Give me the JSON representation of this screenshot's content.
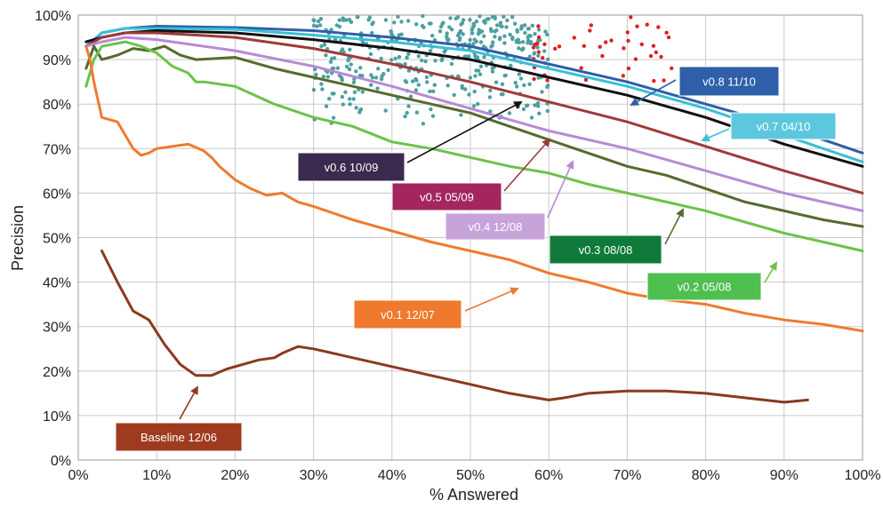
{
  "chart_data": {
    "type": "line",
    "xlabel": "% Answered",
    "ylabel": "Precision",
    "xlim": [
      0,
      100
    ],
    "ylim": [
      0,
      100
    ],
    "x_ticks": [
      "0%",
      "10%",
      "20%",
      "30%",
      "40%",
      "50%",
      "60%",
      "70%",
      "80%",
      "90%",
      "100%"
    ],
    "y_ticks": [
      "0%",
      "10%",
      "20%",
      "30%",
      "40%",
      "50%",
      "60%",
      "70%",
      "80%",
      "90%",
      "100%"
    ],
    "grid": true,
    "series": [
      {
        "name": "v0.8 11/10",
        "color": "#2e5fa8",
        "label_text_color": "#ffffff",
        "points": [
          [
            1,
            93
          ],
          [
            3,
            96
          ],
          [
            6,
            97
          ],
          [
            10,
            97.5
          ],
          [
            20,
            97.2
          ],
          [
            30,
            96.5
          ],
          [
            40,
            95
          ],
          [
            50,
            93
          ],
          [
            60,
            89
          ],
          [
            70,
            85
          ],
          [
            80,
            80
          ],
          [
            90,
            75
          ],
          [
            100,
            69
          ]
        ]
      },
      {
        "name": "v0.7 04/10",
        "color": "#3bbfd6",
        "label_text_color": "#ffffff",
        "points": [
          [
            1,
            93
          ],
          [
            3,
            96
          ],
          [
            6,
            97
          ],
          [
            10,
            97
          ],
          [
            20,
            96.8
          ],
          [
            30,
            95.5
          ],
          [
            40,
            94
          ],
          [
            50,
            92
          ],
          [
            60,
            88
          ],
          [
            70,
            84
          ],
          [
            80,
            79
          ],
          [
            90,
            73
          ],
          [
            100,
            67
          ]
        ]
      },
      {
        "name": "v0.6 10/09",
        "color": "#111111",
        "label_bg": "#3b2a4f",
        "label_text_color": "#ffffff",
        "points": [
          [
            1,
            94
          ],
          [
            3,
            95
          ],
          [
            6,
            96
          ],
          [
            10,
            96.5
          ],
          [
            20,
            96
          ],
          [
            30,
            94.5
          ],
          [
            40,
            92.5
          ],
          [
            50,
            90
          ],
          [
            60,
            86
          ],
          [
            70,
            82
          ],
          [
            80,
            77
          ],
          [
            90,
            71
          ],
          [
            100,
            66
          ]
        ]
      },
      {
        "name": "v0.5 05/09",
        "color": "#9e3a3a",
        "label_bg": "#a3265e",
        "label_text_color": "#ffffff",
        "points": [
          [
            1,
            93
          ],
          [
            3,
            95
          ],
          [
            6,
            96
          ],
          [
            10,
            96
          ],
          [
            20,
            95
          ],
          [
            30,
            92.5
          ],
          [
            40,
            89
          ],
          [
            50,
            85
          ],
          [
            60,
            80.5
          ],
          [
            70,
            76
          ],
          [
            80,
            70.5
          ],
          [
            90,
            65
          ],
          [
            100,
            60
          ]
        ]
      },
      {
        "name": "v0.4 12/08",
        "color": "#b88ad6",
        "label_bg": "#c7a3dc",
        "label_text_color": "#ffffff",
        "points": [
          [
            1,
            93
          ],
          [
            3,
            94
          ],
          [
            6,
            95
          ],
          [
            10,
            94.5
          ],
          [
            20,
            92
          ],
          [
            30,
            88.5
          ],
          [
            40,
            84
          ],
          [
            50,
            79
          ],
          [
            60,
            74
          ],
          [
            70,
            70
          ],
          [
            80,
            65
          ],
          [
            90,
            60
          ],
          [
            100,
            56
          ]
        ]
      },
      {
        "name": "v0.3 08/08",
        "color": "#556b2f",
        "label_bg": "#0f7a3a",
        "label_text_color": "#ffffff",
        "points": [
          [
            1,
            88
          ],
          [
            2,
            93
          ],
          [
            3,
            90
          ],
          [
            5,
            91
          ],
          [
            7,
            92.5
          ],
          [
            9,
            92
          ],
          [
            11,
            93
          ],
          [
            13,
            91
          ],
          [
            15,
            90
          ],
          [
            20,
            90.5
          ],
          [
            25,
            88
          ],
          [
            30,
            86
          ],
          [
            35,
            84
          ],
          [
            40,
            82
          ],
          [
            45,
            80
          ],
          [
            50,
            78
          ],
          [
            55,
            75
          ],
          [
            60,
            72
          ],
          [
            65,
            69
          ],
          [
            70,
            66
          ],
          [
            75,
            64
          ],
          [
            80,
            61
          ],
          [
            85,
            58
          ],
          [
            90,
            56
          ],
          [
            95,
            54
          ],
          [
            100,
            52.5
          ]
        ]
      },
      {
        "name": "v0.2 05/08",
        "color": "#6cc24a",
        "label_bg": "#4fbf4f",
        "label_text_color": "#ffffff",
        "points": [
          [
            1,
            84
          ],
          [
            2,
            90
          ],
          [
            3,
            93
          ],
          [
            6,
            94
          ],
          [
            8,
            93
          ],
          [
            10,
            91.5
          ],
          [
            12,
            88.5
          ],
          [
            14,
            87
          ],
          [
            15,
            85
          ],
          [
            16,
            85
          ],
          [
            18,
            84.5
          ],
          [
            20,
            84
          ],
          [
            25,
            80
          ],
          [
            30,
            77
          ],
          [
            35,
            75
          ],
          [
            40,
            71.5
          ],
          [
            45,
            70
          ],
          [
            50,
            68
          ],
          [
            55,
            66
          ],
          [
            60,
            64.5
          ],
          [
            65,
            62
          ],
          [
            70,
            60
          ],
          [
            75,
            58
          ],
          [
            80,
            56
          ],
          [
            85,
            53.5
          ],
          [
            90,
            51
          ],
          [
            95,
            49
          ],
          [
            100,
            47
          ]
        ]
      },
      {
        "name": "v0.1 12/07",
        "color": "#ef7a2e",
        "label_bg": "#ef7a2e",
        "label_text_color": "#ffffff",
        "points": [
          [
            1,
            93
          ],
          [
            1.5,
            90
          ],
          [
            2,
            85
          ],
          [
            3,
            77
          ],
          [
            5,
            76
          ],
          [
            6,
            73
          ],
          [
            7,
            70
          ],
          [
            8,
            68.5
          ],
          [
            9,
            69
          ],
          [
            10,
            70
          ],
          [
            12,
            70.5
          ],
          [
            14,
            71
          ],
          [
            16,
            69.5
          ],
          [
            17,
            68
          ],
          [
            18,
            66
          ],
          [
            20,
            63
          ],
          [
            22,
            61
          ],
          [
            24,
            59.5
          ],
          [
            26,
            60
          ],
          [
            28,
            58
          ],
          [
            30,
            57
          ],
          [
            35,
            54
          ],
          [
            40,
            51.5
          ],
          [
            45,
            49
          ],
          [
            50,
            47
          ],
          [
            55,
            45
          ],
          [
            60,
            42
          ],
          [
            65,
            40
          ],
          [
            70,
            37.5
          ],
          [
            75,
            36
          ],
          [
            80,
            35
          ],
          [
            85,
            33
          ],
          [
            90,
            31.5
          ],
          [
            95,
            30.5
          ],
          [
            100,
            29
          ]
        ]
      },
      {
        "name": "Baseline 12/06",
        "color": "#8b3a1e",
        "label_bg": "#9e3b1e",
        "label_text_color": "#ffffff",
        "points": [
          [
            3,
            47
          ],
          [
            5,
            40
          ],
          [
            7,
            33.5
          ],
          [
            9,
            31.5
          ],
          [
            11,
            26
          ],
          [
            13,
            21.5
          ],
          [
            15,
            19
          ],
          [
            17,
            19
          ],
          [
            19,
            20.5
          ],
          [
            21,
            21.5
          ],
          [
            23,
            22.5
          ],
          [
            25,
            23
          ],
          [
            26,
            24
          ],
          [
            28,
            25.5
          ],
          [
            30,
            25
          ],
          [
            35,
            23
          ],
          [
            40,
            21
          ],
          [
            45,
            19
          ],
          [
            50,
            17
          ],
          [
            55,
            15
          ],
          [
            60,
            13.5
          ],
          [
            62,
            14
          ],
          [
            65,
            15
          ],
          [
            70,
            15.5
          ],
          [
            75,
            15.5
          ],
          [
            80,
            15
          ],
          [
            85,
            14
          ],
          [
            90,
            13
          ],
          [
            93,
            13.5
          ]
        ]
      }
    ],
    "scatter_series": [
      {
        "name": "teal points",
        "color": "#4f9fa0",
        "x_range": [
          30,
          60
        ],
        "y_range": [
          75,
          100
        ]
      },
      {
        "name": "red points",
        "color": "#e02020",
        "x_range": [
          58,
          76
        ],
        "y_range": [
          85,
          100
        ]
      }
    ]
  }
}
